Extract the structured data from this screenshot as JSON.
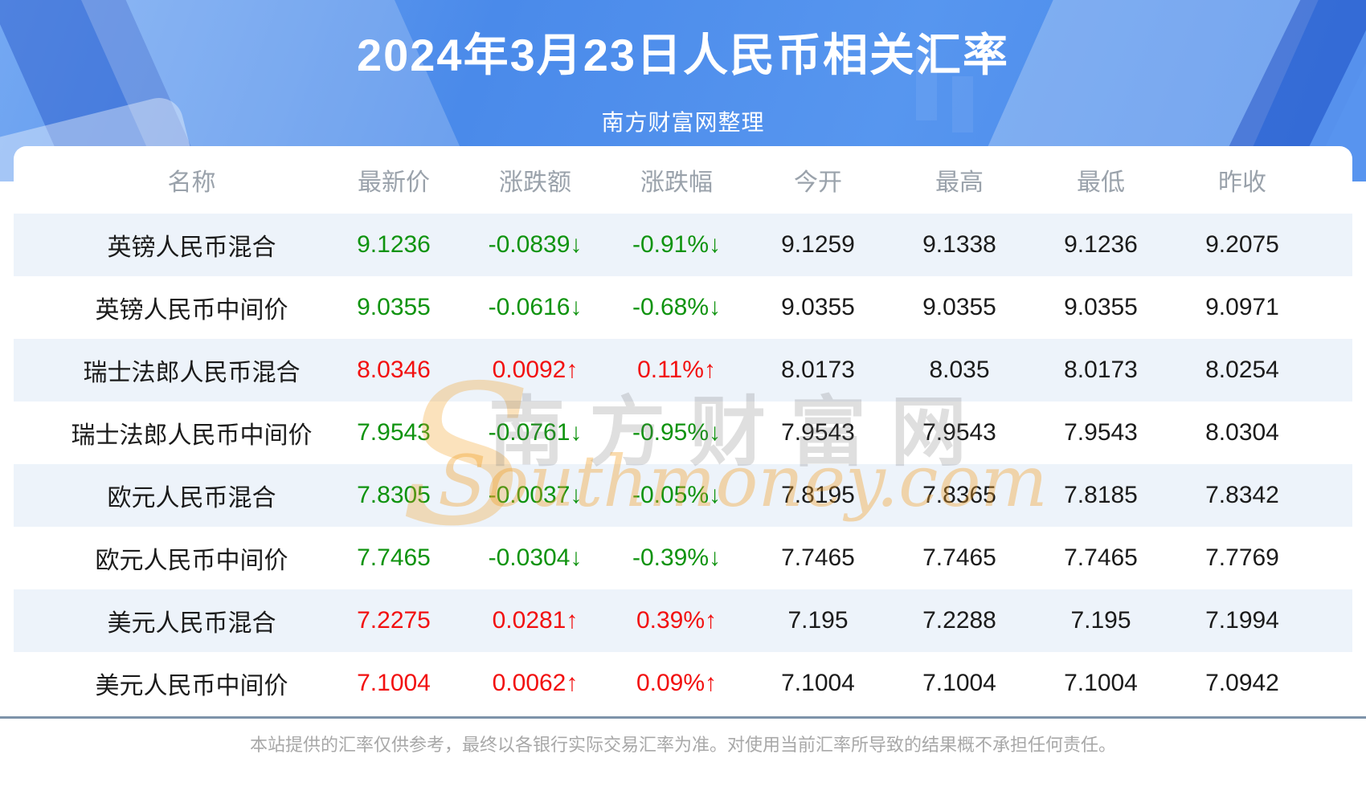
{
  "header": {
    "title": "2024年3月23日人民币相关汇率",
    "subtitle": "南方财富网整理"
  },
  "watermark": {
    "swoosh_glyph": "S",
    "site_name_cn": "南方财富网",
    "site_name_en": "Southmoney.com"
  },
  "table": {
    "columns": [
      "名称",
      "最新价",
      "涨跌额",
      "涨跌幅",
      "今开",
      "最高",
      "最低",
      "昨收"
    ],
    "rows": [
      {
        "name": "英镑人民币混合",
        "last": "9.1236",
        "change": "-0.0839↓",
        "pct": "-0.91%↓",
        "open": "9.1259",
        "high": "9.1338",
        "low": "9.1236",
        "prev": "9.2075",
        "trend": "down"
      },
      {
        "name": "英镑人民币中间价",
        "last": "9.0355",
        "change": "-0.0616↓",
        "pct": "-0.68%↓",
        "open": "9.0355",
        "high": "9.0355",
        "low": "9.0355",
        "prev": "9.0971",
        "trend": "down"
      },
      {
        "name": "瑞士法郎人民币混合",
        "last": "8.0346",
        "change": "0.0092↑",
        "pct": "0.11%↑",
        "open": "8.0173",
        "high": "8.035",
        "low": "8.0173",
        "prev": "8.0254",
        "trend": "up"
      },
      {
        "name": "瑞士法郎人民币中间价",
        "last": "7.9543",
        "change": "-0.0761↓",
        "pct": "-0.95%↓",
        "open": "7.9543",
        "high": "7.9543",
        "low": "7.9543",
        "prev": "8.0304",
        "trend": "down"
      },
      {
        "name": "欧元人民币混合",
        "last": "7.8305",
        "change": "-0.0037↓",
        "pct": "-0.05%↓",
        "open": "7.8195",
        "high": "7.8365",
        "low": "7.8185",
        "prev": "7.8342",
        "trend": "down"
      },
      {
        "name": "欧元人民币中间价",
        "last": "7.7465",
        "change": "-0.0304↓",
        "pct": "-0.39%↓",
        "open": "7.7465",
        "high": "7.7465",
        "low": "7.7465",
        "prev": "7.7769",
        "trend": "down"
      },
      {
        "name": "美元人民币混合",
        "last": "7.2275",
        "change": "0.0281↑",
        "pct": "0.39%↑",
        "open": "7.195",
        "high": "7.2288",
        "low": "7.195",
        "prev": "7.1994",
        "trend": "up"
      },
      {
        "name": "美元人民币中间价",
        "last": "7.1004",
        "change": "0.0062↑",
        "pct": "0.09%↑",
        "open": "7.1004",
        "high": "7.1004",
        "low": "7.1004",
        "prev": "7.0942",
        "trend": "up"
      }
    ]
  },
  "footer": {
    "disclaimer": "本站提供的汇率仅供参考，最终以各银行实际交易汇率为准。对使用当前汇率所导致的结果概不承担任何责任。"
  },
  "colors": {
    "up": "#f21010",
    "down": "#0f930f",
    "hero_blue": "#4a8aea",
    "stripe": "#edf3fa",
    "divider": "#7e93aa"
  }
}
